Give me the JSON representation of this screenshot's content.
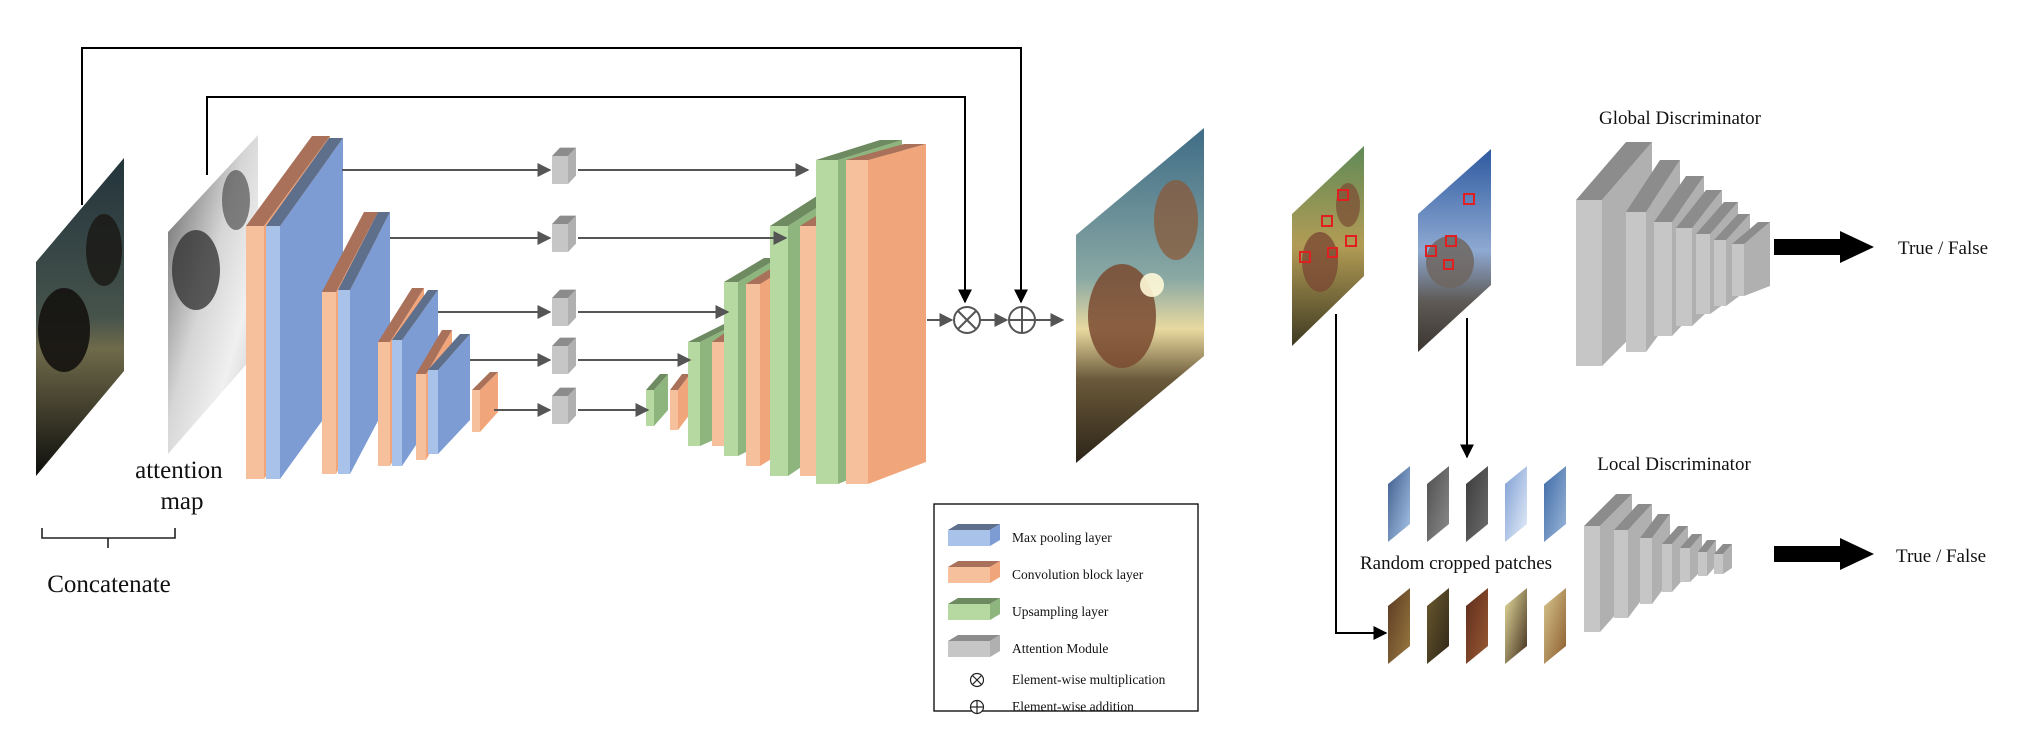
{
  "labels": {
    "attention_map": "attention\nmap",
    "concatenate": "Concatenate",
    "global_discriminator": "Global Discriminator",
    "local_discriminator": "Local Discriminator",
    "random_cropped_patches": "Random cropped patches",
    "global_output": "True / False",
    "local_output": "True / False"
  },
  "legend": [
    {
      "kind": "block",
      "color": "blue",
      "label": "Max pooling layer"
    },
    {
      "kind": "block",
      "color": "orange",
      "label": "Convolution block layer"
    },
    {
      "kind": "block",
      "color": "green",
      "label": "Upsampling layer"
    },
    {
      "kind": "block",
      "color": "gray",
      "label": "Attention Module"
    },
    {
      "kind": "otimes",
      "label": "Element-wise multiplication"
    },
    {
      "kind": "oplus",
      "label": "Element-wise addition"
    }
  ],
  "colors": {
    "blue_front": "#a9c2ea",
    "blue_side": "#7d9cd4",
    "blue_top": "#5e6f8c",
    "orange_front": "#f6c09c",
    "orange_side": "#f1a57a",
    "orange_top": "#a9705a",
    "green_front": "#b5d9a1",
    "green_side": "#8fb57e",
    "green_top": "#6e8a60",
    "gray_front": "#c6c6c6",
    "gray_side": "#b0b0b0",
    "gray_top": "#8c8c8c",
    "line": "#555555",
    "frame": "#000000"
  }
}
